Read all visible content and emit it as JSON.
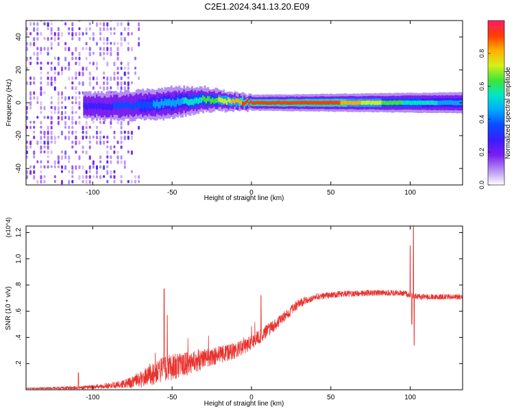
{
  "title": "C2E1.2024.341.13.20.E09",
  "colors": {
    "snr_line": "#e8332f",
    "colormap": [
      "#ffffff",
      "#b48ef2",
      "#7a1ef0",
      "#3a1dff",
      "#0b4bff",
      "#00a8ff",
      "#00e6c8",
      "#3ee636",
      "#d6f01a",
      "#ffb000",
      "#ff3b00",
      "#ff1e6e"
    ]
  },
  "chart_data": [
    {
      "type": "heatmap",
      "xlabel": "Height of straight line (km)",
      "ylabel": "Frequency (Hz)",
      "xlim": [
        -142,
        133
      ],
      "ylim": [
        -50,
        50
      ],
      "xticks": [
        -100,
        -50,
        0,
        50,
        100
      ],
      "yticks": [
        -40,
        -20,
        0,
        20,
        40
      ],
      "grid": false,
      "colorbar": {
        "label": "Normalized spectral amplitude",
        "range": [
          0.0,
          1.0
        ],
        "ticks": [
          "0.0",
          "0.2",
          "0.4",
          "0.6",
          "0.8"
        ]
      },
      "description_points": {
        "band_center_hz": [
          [
            -105,
            -2
          ],
          [
            -80,
            -2
          ],
          [
            -50,
            0
          ],
          [
            -30,
            2
          ],
          [
            -15,
            1
          ],
          [
            0,
            0
          ],
          [
            50,
            0
          ],
          [
            100,
            0
          ],
          [
            133,
            0
          ]
        ],
        "band_halfwidth_hz": [
          [
            -105,
            5
          ],
          [
            -50,
            6
          ],
          [
            -20,
            4
          ],
          [
            0,
            3
          ],
          [
            133,
            4
          ]
        ],
        "peak_amplitude": [
          [
            -105,
            0.25
          ],
          [
            -80,
            0.35
          ],
          [
            -50,
            0.45
          ],
          [
            -30,
            0.6
          ],
          [
            -15,
            0.75
          ],
          [
            0,
            0.95
          ],
          [
            50,
            0.9
          ],
          [
            100,
            0.55
          ],
          [
            133,
            0.45
          ]
        ],
        "noise_region_km": [
          -142,
          -70
        ]
      }
    },
    {
      "type": "line",
      "xlabel": "Height of straight line (km)",
      "ylabel": "SNR (10 * v/v)",
      "y_multiplier": "(x10^4)",
      "xlim": [
        -142,
        133
      ],
      "ylim": [
        0,
        1.25
      ],
      "xticks": [
        -100,
        -50,
        0,
        50,
        100
      ],
      "yticks": [
        0.2,
        0.4,
        0.6,
        0.8,
        1.0,
        1.2
      ],
      "grid": false,
      "series": [
        {
          "baseline": [
            [
              -142,
              0.01
            ],
            [
              -110,
              0.015
            ],
            [
              -90,
              0.03
            ],
            [
              -78,
              0.05
            ],
            [
              -65,
              0.1
            ],
            [
              -55,
              0.16
            ],
            [
              -40,
              0.2
            ],
            [
              -25,
              0.25
            ],
            [
              -10,
              0.3
            ],
            [
              0,
              0.36
            ],
            [
              10,
              0.45
            ],
            [
              20,
              0.55
            ],
            [
              30,
              0.66
            ],
            [
              40,
              0.71
            ],
            [
              55,
              0.73
            ],
            [
              75,
              0.74
            ],
            [
              95,
              0.74
            ],
            [
              100,
              0.72
            ],
            [
              105,
              0.71
            ],
            [
              133,
              0.71
            ]
          ],
          "noise_amp": [
            [
              -142,
              0.01
            ],
            [
              -100,
              0.03
            ],
            [
              -80,
              0.06
            ],
            [
              -65,
              0.16
            ],
            [
              -50,
              0.2
            ],
            [
              -30,
              0.15
            ],
            [
              -10,
              0.12
            ],
            [
              10,
              0.1
            ],
            [
              30,
              0.07
            ],
            [
              40,
              0.05
            ],
            [
              133,
              0.04
            ]
          ],
          "spikes": [
            [
              -109,
              0.13
            ],
            [
              -55,
              0.77
            ],
            [
              -53,
              0.57
            ],
            [
              6,
              0.72
            ],
            [
              100,
              1.1
            ],
            [
              101,
              0.5
            ],
            [
              102,
              1.27
            ],
            [
              102.5,
              0.34
            ]
          ]
        }
      ]
    }
  ]
}
